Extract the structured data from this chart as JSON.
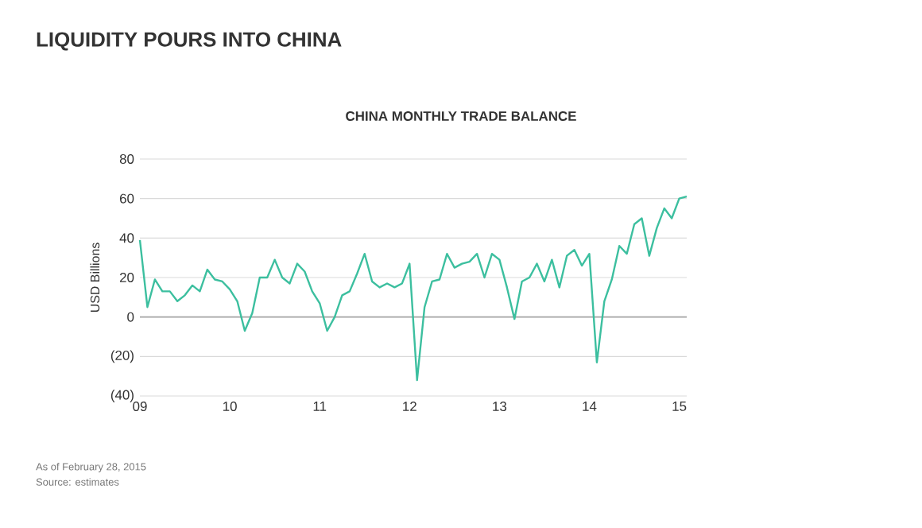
{
  "chart_data": {
    "type": "line",
    "title": "LIQUIDITY POURS INTO CHINA",
    "subtitle": "CHINA MONTHLY TRADE BALANCE",
    "ylabel": "USD Billions",
    "x": [
      "2009-01",
      "2009-02",
      "2009-03",
      "2009-04",
      "2009-05",
      "2009-06",
      "2009-07",
      "2009-08",
      "2009-09",
      "2009-10",
      "2009-11",
      "2009-12",
      "2010-01",
      "2010-02",
      "2010-03",
      "2010-04",
      "2010-05",
      "2010-06",
      "2010-07",
      "2010-08",
      "2010-09",
      "2010-10",
      "2010-11",
      "2010-12",
      "2011-01",
      "2011-02",
      "2011-03",
      "2011-04",
      "2011-05",
      "2011-06",
      "2011-07",
      "2011-08",
      "2011-09",
      "2011-10",
      "2011-11",
      "2011-12",
      "2012-01",
      "2012-02",
      "2012-03",
      "2012-04",
      "2012-05",
      "2012-06",
      "2012-07",
      "2012-08",
      "2012-09",
      "2012-10",
      "2012-11",
      "2012-12",
      "2013-01",
      "2013-02",
      "2013-03",
      "2013-04",
      "2013-05",
      "2013-06",
      "2013-07",
      "2013-08",
      "2013-09",
      "2013-10",
      "2013-11",
      "2013-12",
      "2014-01",
      "2014-02",
      "2014-03",
      "2014-04",
      "2014-05",
      "2014-06",
      "2014-07",
      "2014-08",
      "2014-09",
      "2014-10",
      "2014-11",
      "2014-12",
      "2015-01",
      "2015-02"
    ],
    "series": [
      {
        "color": "#3cbf9f",
        "values": [
          39,
          5,
          19,
          13,
          13,
          8,
          11,
          16,
          13,
          24,
          19,
          18,
          14,
          8,
          -7,
          2,
          20,
          20,
          29,
          20,
          17,
          27,
          23,
          13,
          7,
          -7,
          0,
          11,
          13,
          22,
          32,
          18,
          15,
          17,
          15,
          17,
          27,
          -32,
          5,
          18,
          19,
          32,
          25,
          27,
          28,
          32,
          20,
          32,
          29,
          15,
          -1,
          18,
          20,
          27,
          18,
          29,
          15,
          31,
          34,
          26,
          32,
          -23,
          8,
          19,
          36,
          32,
          47,
          50,
          31,
          45,
          55,
          50,
          60,
          61
        ]
      }
    ],
    "xlim": [
      "2009-01",
      "2015-02"
    ],
    "xticks": [
      {
        "value": "2009-01",
        "label": "09"
      },
      {
        "value": "2010-01",
        "label": "10"
      },
      {
        "value": "2011-01",
        "label": "11"
      },
      {
        "value": "2012-01",
        "label": "12"
      },
      {
        "value": "2013-01",
        "label": "13"
      },
      {
        "value": "2014-01",
        "label": "14"
      },
      {
        "value": "2015-01",
        "label": "15"
      }
    ],
    "ylim": [
      -40,
      80
    ],
    "yticks": [
      {
        "value": -40,
        "label": "(40)"
      },
      {
        "value": -20,
        "label": "(20)"
      },
      0,
      20,
      40,
      60,
      80
    ],
    "grid": "y",
    "ref_lines": [
      {
        "axis": "y",
        "value": 0,
        "color": "#a6a6a6"
      }
    ],
    "annotations": [
      "As of February 28, 2015",
      "Source: estimates"
    ]
  }
}
